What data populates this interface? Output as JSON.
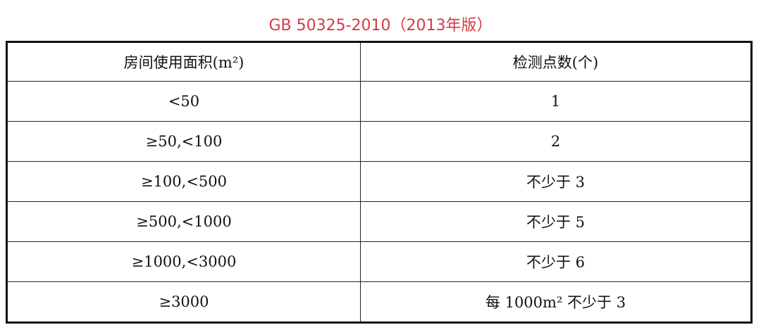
{
  "title": "GB 50325-2010（2013年版）",
  "table": {
    "headers": [
      "房间使用面积(m²)",
      "检测点数(个)"
    ],
    "rows": [
      [
        "<50",
        "1"
      ],
      [
        "≥50,<100",
        "2"
      ],
      [
        "≥100,<500",
        "不少于 3"
      ],
      [
        "≥500,<1000",
        "不少于 5"
      ],
      [
        "≥1000,<3000",
        "不少于 6"
      ],
      [
        "≥3000",
        "每 1000m² 不少于 3"
      ]
    ]
  },
  "colors": {
    "title": "#d33a44"
  }
}
